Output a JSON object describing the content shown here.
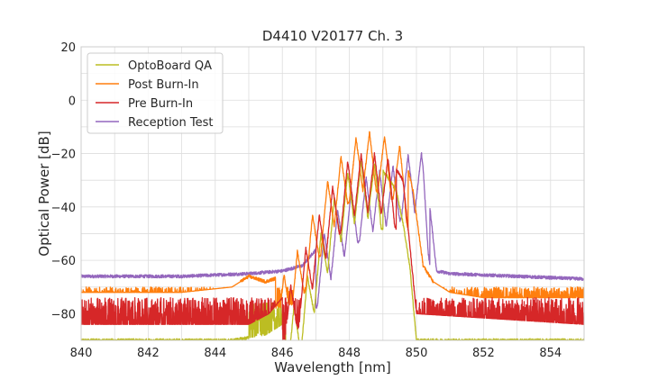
{
  "chart_data": {
    "type": "line",
    "title": "D4410 V20177 Ch. 3",
    "xlabel": "Wavelength [nm]",
    "ylabel": "Optical Power [dB]",
    "xlim": [
      840,
      855
    ],
    "ylim": [
      -90,
      20
    ],
    "xticks": [
      840,
      842,
      844,
      846,
      848,
      850,
      852,
      854
    ],
    "xtick_labels": [
      "840",
      "842",
      "844",
      "846",
      "848",
      "850",
      "852",
      "854"
    ],
    "yticks": [
      20,
      0,
      -20,
      -40,
      -60,
      -80
    ],
    "ytick_labels": [
      "20",
      "0",
      "−20",
      "−40",
      "−60",
      "−80"
    ],
    "grid": true,
    "legend": "top-left",
    "series": [
      {
        "name": "OptoBoard QA",
        "color": "#bcbd22",
        "noise": {
          "range": [
            845.0,
            846.0
          ],
          "low": -90,
          "high": -76
        },
        "peaks": [
          846.35,
          846.75,
          847.15,
          847.55,
          847.95,
          848.35,
          848.75
        ],
        "x": [
          840,
          844.5,
          845.5,
          846.0,
          846.3,
          846.6,
          846.9,
          847.2,
          847.5,
          847.8,
          848.0,
          848.2,
          848.5,
          848.8,
          849.1,
          849.4,
          849.6,
          849.8,
          850.0
        ],
        "y": [
          -90,
          -90,
          -88,
          -84,
          -78,
          -72,
          -60,
          -48,
          -38,
          -30,
          -26,
          -24,
          -22,
          -24,
          -28,
          -34,
          -46,
          -62,
          -90
        ]
      },
      {
        "name": "Post Burn-In",
        "color": "#ff7f0e",
        "noise": {
          "range": [
            840.0,
            855.0
          ],
          "low": -78,
          "high": -70
        },
        "peaks": [
          846.05,
          846.45,
          846.9,
          847.35,
          847.75,
          848.2,
          848.6,
          849.05,
          849.5
        ],
        "x": [
          840,
          843.0,
          844.5,
          845.0,
          845.5,
          846.0,
          846.4,
          846.8,
          847.2,
          847.6,
          848.0,
          848.4,
          848.8,
          849.2,
          849.6,
          849.9,
          850.2,
          850.5,
          851.0,
          852.0,
          855.0
        ],
        "y": [
          -72,
          -72,
          -70,
          -66,
          -68,
          -66,
          -58,
          -46,
          -34,
          -24,
          -16,
          -12,
          -12,
          -14,
          -18,
          -34,
          -62,
          -68,
          -72,
          -74,
          -74
        ]
      },
      {
        "name": "Pre Burn-In",
        "color": "#d62728",
        "noise": {
          "range": [
            840.0,
            855.0
          ],
          "low": -90,
          "high": -74
        },
        "peaks": [
          846.25,
          846.7,
          847.1,
          847.5,
          847.95,
          848.35,
          848.75,
          849.15
        ],
        "x": [
          840,
          845.0,
          845.6,
          846.0,
          846.4,
          846.8,
          847.2,
          847.6,
          848.0,
          848.4,
          848.8,
          849.2,
          849.6,
          849.8,
          850.0,
          855.0
        ],
        "y": [
          -84,
          -84,
          -80,
          -74,
          -66,
          -52,
          -40,
          -30,
          -22,
          -20,
          -20,
          -22,
          -30,
          -54,
          -80,
          -84
        ]
      },
      {
        "name": "Reception Test",
        "color": "#9467bd",
        "noise": null,
        "peaks": [
          847.25,
          847.65,
          848.05,
          848.5,
          848.9,
          849.3,
          849.75,
          850.15
        ],
        "x": [
          840,
          843.0,
          845.0,
          846.0,
          846.6,
          847.0,
          847.4,
          847.8,
          848.2,
          848.6,
          849.0,
          849.4,
          849.8,
          850.2,
          850.4,
          850.6,
          851.0,
          853.0,
          855.0
        ],
        "y": [
          -66,
          -66,
          -65,
          -64,
          -62,
          -56,
          -46,
          -38,
          -32,
          -28,
          -26,
          -24,
          -20,
          -20,
          -40,
          -64,
          -65,
          -66,
          -67
        ]
      }
    ]
  }
}
